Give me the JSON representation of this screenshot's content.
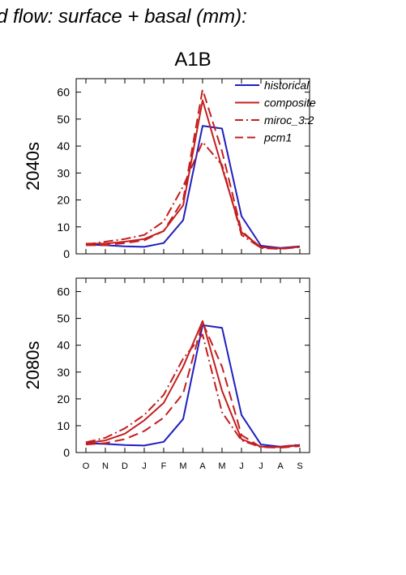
{
  "figure": {
    "header": "d flow: surface + basal (mm):",
    "title": "A1B"
  },
  "colors": {
    "historical": "#1f1fbf",
    "scenario": "#c41e1e",
    "axis": "#000000"
  },
  "chart_data": [
    {
      "type": "line",
      "ylabel": "2040s",
      "ylim": [
        0,
        65
      ],
      "yticks": [
        0,
        10,
        20,
        30,
        40,
        50,
        60
      ],
      "categories": [
        "O",
        "N",
        "D",
        "J",
        "F",
        "M",
        "A",
        "M",
        "J",
        "J",
        "A",
        "S"
      ],
      "legend": {
        "position": "top-right"
      },
      "series": [
        {
          "name": "historical",
          "style": "solid",
          "color": "historical",
          "values": [
            3.5,
            3.2,
            2.8,
            2.6,
            4,
            12.5,
            47.5,
            46.5,
            14,
            3,
            2.2,
            2.8
          ]
        },
        {
          "name": "composite",
          "style": "solid",
          "color": "scenario",
          "values": [
            3.8,
            3.8,
            4.5,
            5.5,
            8.5,
            18,
            57,
            32,
            8,
            2.5,
            2,
            2.6
          ]
        },
        {
          "name": "miroc_3.2",
          "style": "dashdot",
          "color": "scenario",
          "values": [
            3.5,
            4.5,
            5.5,
            7,
            12,
            25,
            41.5,
            33,
            7,
            2.2,
            1.8,
            2.5
          ]
        },
        {
          "name": "pcm1",
          "style": "dashed",
          "color": "scenario",
          "values": [
            3.2,
            3.2,
            4,
            5,
            8.5,
            20,
            61,
            38,
            8.5,
            2.2,
            1.8,
            2.6
          ]
        }
      ]
    },
    {
      "type": "line",
      "ylabel": "2080s",
      "ylim": [
        0,
        65
      ],
      "yticks": [
        0,
        10,
        20,
        30,
        40,
        50,
        60
      ],
      "categories": [
        "O",
        "N",
        "D",
        "J",
        "F",
        "M",
        "A",
        "M",
        "J",
        "J",
        "A",
        "S"
      ],
      "series": [
        {
          "name": "historical",
          "style": "solid",
          "color": "historical",
          "values": [
            3.5,
            3.2,
            2.8,
            2.6,
            4,
            12.5,
            47.5,
            46.5,
            14,
            3,
            2.2,
            2.8
          ]
        },
        {
          "name": "composite",
          "style": "solid",
          "color": "scenario",
          "values": [
            3.5,
            4.5,
            7,
            12,
            18.5,
            32,
            49,
            23,
            5,
            2.2,
            2,
            2.6
          ]
        },
        {
          "name": "miroc_3.2",
          "style": "dashdot",
          "color": "scenario",
          "values": [
            3.8,
            5.5,
            9,
            14,
            21.5,
            35,
            44,
            15,
            4.5,
            2,
            2.2,
            3
          ]
        },
        {
          "name": "pcm1",
          "style": "dashed",
          "color": "scenario",
          "values": [
            3,
            3.5,
            5,
            8,
            13,
            22,
            48.5,
            32,
            6.5,
            2,
            1.8,
            2.4
          ]
        }
      ]
    }
  ]
}
